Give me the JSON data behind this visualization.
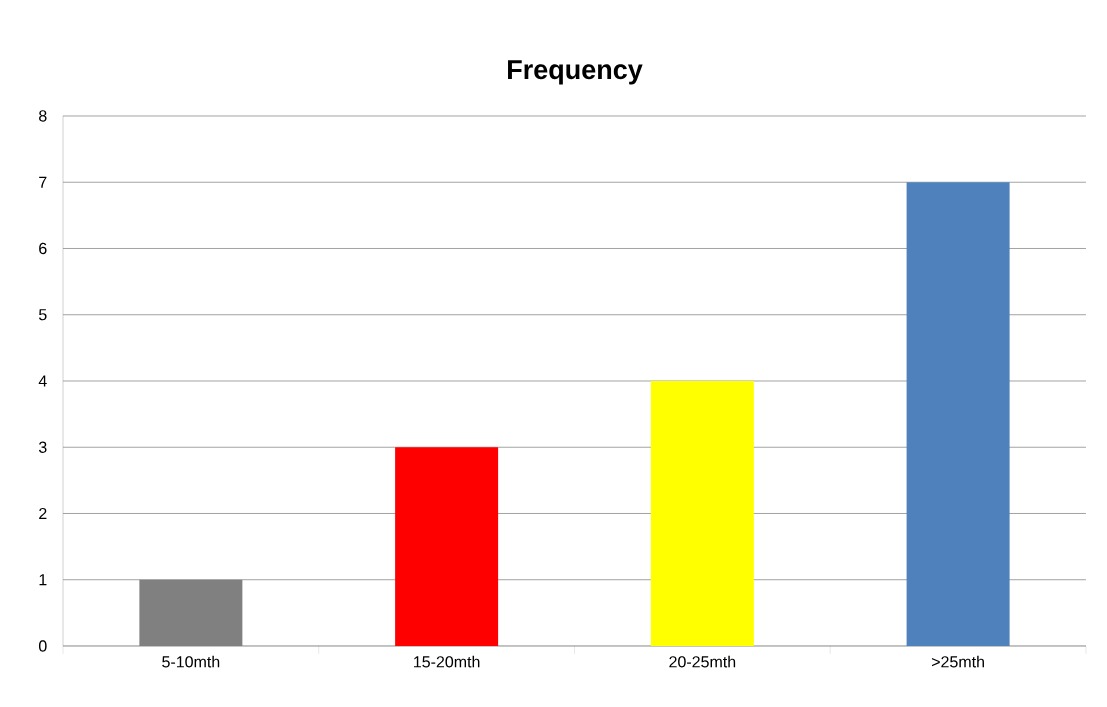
{
  "chart_data": {
    "type": "bar",
    "title": "Frequency",
    "categories": [
      "5-10mth",
      "15-20mth",
      "20-25mth",
      ">25mth"
    ],
    "values": [
      1,
      3,
      4,
      7
    ],
    "colors": [
      "#808080",
      "#ff0000",
      "#ffff00",
      "#4f81bd"
    ],
    "ylim": [
      0,
      8
    ],
    "yticks": [
      0,
      1,
      2,
      3,
      4,
      5,
      6,
      7,
      8
    ],
    "grid": "y"
  }
}
